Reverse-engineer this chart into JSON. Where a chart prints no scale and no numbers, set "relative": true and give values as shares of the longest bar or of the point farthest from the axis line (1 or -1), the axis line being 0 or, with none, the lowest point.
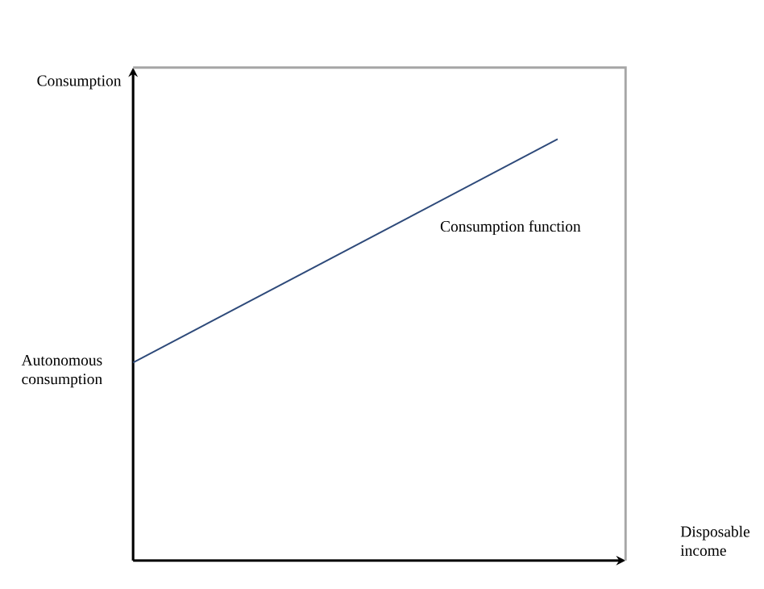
{
  "chart_data": {
    "type": "line",
    "relative": true,
    "xlabel": "Disposable income",
    "ylabel": "Consumption",
    "categories": [
      null,
      null
    ],
    "series": [
      {
        "name": "Consumption function",
        "color": "#2e4a7a",
        "values": [
          0.47,
          1
        ]
      }
    ],
    "annotations": [
      "Autonomous consumption"
    ]
  }
}
